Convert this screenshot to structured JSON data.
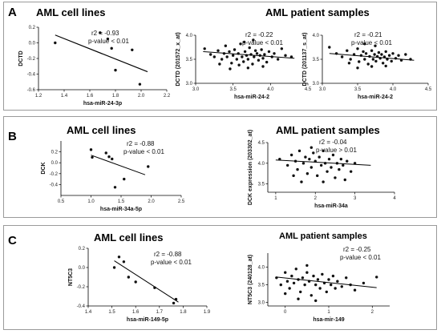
{
  "panels": [
    {
      "letter": "A",
      "cell_title": "AML cell lines",
      "patient_title": "AML patient samples"
    },
    {
      "letter": "B",
      "cell_title": "AML cell lines",
      "patient_title": "AML patient samples"
    },
    {
      "letter": "C",
      "cell_title": "AML cell lines",
      "patient_title": "AML patient samples"
    }
  ],
  "chart_data": [
    {
      "id": "A1",
      "type": "scatter",
      "xlabel": "hsa-miR-24-3p",
      "ylabel": "DCTD",
      "xlim": [
        1.2,
        2.2
      ],
      "ylim": [
        -0.6,
        0.2
      ],
      "xticks": [
        1.2,
        1.4,
        1.6,
        1.8,
        2.0,
        2.2
      ],
      "xtick_labels": [
        "1.2",
        "1.4",
        "1.6",
        "1.8",
        "2.0",
        "2.2"
      ],
      "yticks": [
        -0.6,
        -0.4,
        -0.2,
        0.0,
        0.2
      ],
      "ytick_labels": [
        "-0.6",
        "-0.4",
        "-0.2",
        "0.0",
        "0.2"
      ],
      "r2": "r2 = -0.93",
      "pvalue": "p-value < 0.01",
      "points": [
        [
          1.33,
          0.0
        ],
        [
          1.68,
          0.13
        ],
        [
          1.74,
          0.05
        ],
        [
          1.77,
          -0.07
        ],
        [
          1.8,
          -0.35
        ],
        [
          1.93,
          -0.09
        ],
        [
          1.99,
          -0.53
        ]
      ],
      "fit": [
        [
          1.33,
          0.1
        ],
        [
          2.05,
          -0.37
        ]
      ]
    },
    {
      "id": "A2",
      "type": "scatter",
      "xlabel": "hsa-miR-24-2",
      "ylabel": "DCTD (201572_x_at)",
      "xlim": [
        3.0,
        4.5
      ],
      "ylim": [
        3.0,
        4.0
      ],
      "xticks": [
        3.0,
        3.5,
        4.0,
        4.5
      ],
      "xtick_labels": [
        "3.0",
        "3.5",
        "4.0",
        "4.5"
      ],
      "yticks": [
        3.0,
        3.5,
        4.0
      ],
      "ytick_labels": [
        "3.0",
        "3.5",
        "4.0"
      ],
      "r2": "r2 = -0.22",
      "pvalue": "p-value < 0.01",
      "points": [
        [
          3.12,
          3.72
        ],
        [
          3.2,
          3.6
        ],
        [
          3.25,
          3.55
        ],
        [
          3.3,
          3.68
        ],
        [
          3.35,
          3.5
        ],
        [
          3.38,
          3.62
        ],
        [
          3.4,
          3.78
        ],
        [
          3.42,
          3.55
        ],
        [
          3.45,
          3.66
        ],
        [
          3.48,
          3.42
        ],
        [
          3.5,
          3.58
        ],
        [
          3.52,
          3.7
        ],
        [
          3.55,
          3.5
        ],
        [
          3.57,
          3.62
        ],
        [
          3.6,
          3.82
        ],
        [
          3.62,
          3.55
        ],
        [
          3.64,
          3.45
        ],
        [
          3.66,
          3.66
        ],
        [
          3.68,
          3.58
        ],
        [
          3.7,
          3.5
        ],
        [
          3.72,
          3.74
        ],
        [
          3.74,
          3.6
        ],
        [
          3.76,
          3.4
        ],
        [
          3.78,
          3.55
        ],
        [
          3.8,
          3.68
        ],
        [
          3.82,
          3.62
        ],
        [
          3.84,
          3.48
        ],
        [
          3.86,
          3.58
        ],
        [
          3.88,
          3.7
        ],
        [
          3.9,
          3.52
        ],
        [
          3.92,
          3.6
        ],
        [
          3.95,
          3.44
        ],
        [
          3.98,
          3.66
        ],
        [
          4.02,
          3.55
        ],
        [
          4.05,
          3.62
        ],
        [
          4.1,
          3.5
        ],
        [
          4.15,
          3.72
        ],
        [
          4.2,
          3.58
        ],
        [
          4.28,
          3.55
        ],
        [
          3.46,
          3.3
        ],
        [
          3.7,
          3.32
        ],
        [
          3.58,
          3.38
        ],
        [
          3.9,
          3.35
        ],
        [
          3.65,
          3.86
        ],
        [
          3.32,
          3.4
        ],
        [
          3.77,
          3.9
        ]
      ],
      "fit": [
        [
          3.1,
          3.66
        ],
        [
          4.32,
          3.52
        ]
      ]
    },
    {
      "id": "A3",
      "type": "scatter",
      "xlabel": "hsa-miR-24-2",
      "ylabel": "DCTD (201137_s_at)",
      "xlim": [
        3.0,
        4.5
      ],
      "ylim": [
        3.0,
        4.0
      ],
      "xticks": [
        3.0,
        3.5,
        4.0,
        4.5
      ],
      "xtick_labels": [
        "3.0",
        "3.5",
        "4.0",
        "4.5"
      ],
      "yticks": [
        3.0,
        3.5,
        4.0
      ],
      "ytick_labels": [
        "3.0",
        "3.5",
        "4.0"
      ],
      "r2": "r2 = -0.21",
      "pvalue": "p-value < 0.01",
      "points": [
        [
          3.1,
          3.75
        ],
        [
          3.2,
          3.62
        ],
        [
          3.28,
          3.55
        ],
        [
          3.35,
          3.68
        ],
        [
          3.4,
          3.5
        ],
        [
          3.45,
          3.6
        ],
        [
          3.5,
          3.72
        ],
        [
          3.52,
          3.45
        ],
        [
          3.55,
          3.58
        ],
        [
          3.58,
          3.66
        ],
        [
          3.6,
          3.5
        ],
        [
          3.62,
          3.62
        ],
        [
          3.65,
          3.4
        ],
        [
          3.67,
          3.56
        ],
        [
          3.7,
          3.68
        ],
        [
          3.72,
          3.5
        ],
        [
          3.74,
          3.6
        ],
        [
          3.76,
          3.46
        ],
        [
          3.78,
          3.56
        ],
        [
          3.8,
          3.64
        ],
        [
          3.82,
          3.52
        ],
        [
          3.84,
          3.6
        ],
        [
          3.86,
          3.42
        ],
        [
          3.88,
          3.55
        ],
        [
          3.9,
          3.66
        ],
        [
          3.92,
          3.5
        ],
        [
          3.95,
          3.58
        ],
        [
          3.98,
          3.46
        ],
        [
          4.0,
          3.62
        ],
        [
          4.04,
          3.52
        ],
        [
          4.08,
          3.58
        ],
        [
          4.12,
          3.48
        ],
        [
          4.18,
          3.6
        ],
        [
          4.25,
          3.5
        ],
        [
          3.5,
          3.32
        ],
        [
          3.7,
          3.35
        ],
        [
          3.9,
          3.36
        ],
        [
          3.6,
          3.82
        ],
        [
          3.38,
          3.42
        ],
        [
          3.75,
          3.78
        ]
      ],
      "fit": [
        [
          3.1,
          3.62
        ],
        [
          4.3,
          3.48
        ]
      ]
    },
    {
      "id": "B1",
      "type": "scatter",
      "xlabel": "hsa-miR-34a-5p",
      "ylabel": "DCK",
      "xlim": [
        0.5,
        2.5
      ],
      "ylim": [
        -0.6,
        0.4
      ],
      "xticks": [
        0.5,
        1.0,
        1.5,
        2.0,
        2.5
      ],
      "xtick_labels": [
        "0.5",
        "1.0",
        "1.5",
        "2.0",
        "2.5"
      ],
      "yticks": [
        -0.4,
        -0.2,
        0.0,
        0.2
      ],
      "ytick_labels": [
        "-0.4",
        "-0.2",
        "0.0",
        "0.2"
      ],
      "r2": "r2 = -0.88",
      "pvalue": "p-value < 0.01",
      "points": [
        [
          1.0,
          0.24
        ],
        [
          1.02,
          0.1
        ],
        [
          1.25,
          0.18
        ],
        [
          1.3,
          0.11
        ],
        [
          1.35,
          0.07
        ],
        [
          1.4,
          -0.45
        ],
        [
          1.55,
          -0.3
        ],
        [
          1.95,
          -0.07
        ]
      ],
      "fit": [
        [
          1.0,
          0.14
        ],
        [
          1.9,
          -0.22
        ]
      ]
    },
    {
      "id": "B2",
      "type": "scatter",
      "xlabel": "hsa-miR-34a",
      "ylabel": "DCK expression (203302_at)",
      "xlim": [
        0.8,
        4.0
      ],
      "ylim": [
        3.3,
        4.5
      ],
      "xticks": [
        1,
        2,
        3,
        4
      ],
      "xtick_labels": [
        "1",
        "2",
        "3",
        "4"
      ],
      "yticks": [
        3.5,
        4.0,
        4.5
      ],
      "ytick_labels": [
        "3.5",
        "4.0",
        "4.5"
      ],
      "r2": "r2 = -0.04",
      "pvalue": "p-value > 0.01",
      "points": [
        [
          1.1,
          4.1
        ],
        [
          1.3,
          3.95
        ],
        [
          1.4,
          4.2
        ],
        [
          1.5,
          4.05
        ],
        [
          1.55,
          3.85
        ],
        [
          1.6,
          4.3
        ],
        [
          1.7,
          4.0
        ],
        [
          1.75,
          4.15
        ],
        [
          1.8,
          3.75
        ],
        [
          1.85,
          4.1
        ],
        [
          1.9,
          3.9
        ],
        [
          1.95,
          4.25
        ],
        [
          2.0,
          4.05
        ],
        [
          2.05,
          3.7
        ],
        [
          2.1,
          4.15
        ],
        [
          2.15,
          3.95
        ],
        [
          2.2,
          4.3
        ],
        [
          2.25,
          4.0
        ],
        [
          2.3,
          3.8
        ],
        [
          2.35,
          4.1
        ],
        [
          2.4,
          3.9
        ],
        [
          2.45,
          4.2
        ],
        [
          2.5,
          3.65
        ],
        [
          2.55,
          4.0
        ],
        [
          2.6,
          3.85
        ],
        [
          2.65,
          4.1
        ],
        [
          2.7,
          3.95
        ],
        [
          2.8,
          4.05
        ],
        [
          2.9,
          3.8
        ],
        [
          3.0,
          4.0
        ],
        [
          1.65,
          3.55
        ],
        [
          2.2,
          3.55
        ],
        [
          1.9,
          4.38
        ],
        [
          2.75,
          3.6
        ],
        [
          1.45,
          3.7
        ]
      ],
      "fit": [
        [
          1.0,
          4.08
        ],
        [
          3.4,
          3.95
        ]
      ]
    },
    {
      "id": "C1",
      "type": "scatter",
      "xlabel": "hsa-miR-149-5p",
      "ylabel": "NT5C3",
      "xlim": [
        1.4,
        1.9
      ],
      "ylim": [
        -0.4,
        0.2
      ],
      "xticks": [
        1.4,
        1.5,
        1.6,
        1.7,
        1.8,
        1.9
      ],
      "xtick_labels": [
        "1.4",
        "1.5",
        "1.6",
        "1.7",
        "1.8",
        "1.9"
      ],
      "yticks": [
        -0.4,
        -0.2,
        0.0,
        0.2
      ],
      "ytick_labels": [
        "-0.4",
        "-0.2",
        "0.0",
        "0.2"
      ],
      "r2": "r2 = -0.88",
      "pvalue": "p-value < 0.01",
      "points": [
        [
          1.51,
          0.0
        ],
        [
          1.53,
          0.11
        ],
        [
          1.55,
          0.06
        ],
        [
          1.57,
          -0.1
        ],
        [
          1.6,
          -0.15
        ],
        [
          1.68,
          -0.21
        ],
        [
          1.76,
          -0.37
        ],
        [
          1.77,
          -0.33
        ]
      ],
      "fit": [
        [
          1.51,
          0.07
        ],
        [
          1.78,
          -0.36
        ]
      ]
    },
    {
      "id": "C2",
      "type": "scatter",
      "xlabel": "hsa-mir-149",
      "ylabel": "NT5C3 (240128_at)",
      "xlim": [
        -0.4,
        2.4
      ],
      "ylim": [
        2.9,
        4.4
      ],
      "xticks": [
        0,
        1,
        2
      ],
      "xtick_labels": [
        "0",
        "1",
        "2"
      ],
      "yticks": [
        3.0,
        3.5,
        4.0
      ],
      "ytick_labels": [
        "3.0",
        "3.5",
        "4.0"
      ],
      "r2": "r2 = -0.25",
      "pvalue": "p-value < 0.01",
      "points": [
        [
          -0.2,
          3.7
        ],
        [
          -0.1,
          3.5
        ],
        [
          0.0,
          3.85
        ],
        [
          0.05,
          3.6
        ],
        [
          0.1,
          3.4
        ],
        [
          0.15,
          3.75
        ],
        [
          0.2,
          3.55
        ],
        [
          0.25,
          3.95
        ],
        [
          0.3,
          3.65
        ],
        [
          0.35,
          3.3
        ],
        [
          0.4,
          3.7
        ],
        [
          0.45,
          3.5
        ],
        [
          0.5,
          3.85
        ],
        [
          0.55,
          3.6
        ],
        [
          0.6,
          3.2
        ],
        [
          0.65,
          3.75
        ],
        [
          0.7,
          3.5
        ],
        [
          0.75,
          3.65
        ],
        [
          0.8,
          3.4
        ],
        [
          0.85,
          3.8
        ],
        [
          0.9,
          3.55
        ],
        [
          0.95,
          3.3
        ],
        [
          1.0,
          3.65
        ],
        [
          1.05,
          3.5
        ],
        [
          1.1,
          3.75
        ],
        [
          1.15,
          3.4
        ],
        [
          1.2,
          3.6
        ],
        [
          1.3,
          3.45
        ],
        [
          1.4,
          3.7
        ],
        [
          1.5,
          3.5
        ],
        [
          1.6,
          3.35
        ],
        [
          1.8,
          3.55
        ],
        [
          0.3,
          3.1
        ],
        [
          0.7,
          3.05
        ],
        [
          0.5,
          4.05
        ],
        [
          2.1,
          3.72
        ],
        [
          0.0,
          3.25
        ]
      ],
      "fit": [
        [
          -0.2,
          3.72
        ],
        [
          2.1,
          3.42
        ]
      ]
    }
  ]
}
